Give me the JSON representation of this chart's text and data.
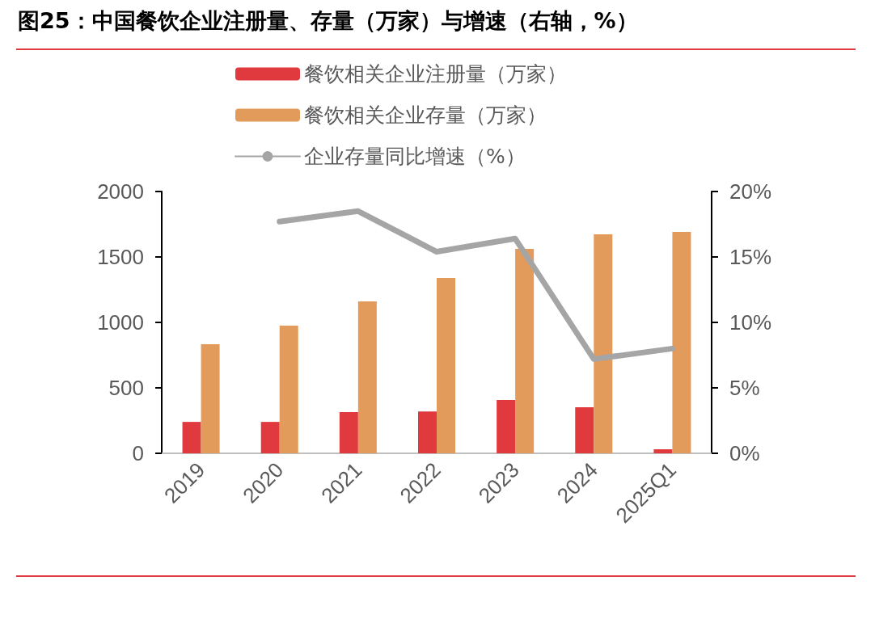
{
  "chart_data": {
    "type": "bar",
    "title": "图25：中国餐饮企业注册量、存量（万家）与增速（右轴，%）",
    "categories": [
      "2019",
      "2020",
      "2021",
      "2022",
      "2023",
      "2024",
      "2025Q1"
    ],
    "series": [
      {
        "name": "餐饮相关企业注册量（万家）",
        "color": "#e0393e",
        "values": [
          240,
          240,
          315,
          320,
          407,
          352,
          31
        ]
      },
      {
        "name": "餐饮相关企业存量（万家）",
        "color": "#e39b5b",
        "values": [
          833,
          975,
          1160,
          1340,
          1562,
          1673,
          1691
        ]
      },
      {
        "name": "企业存量同比增速（%）",
        "type": "line",
        "axis": "y2",
        "color": "#a5a5a5",
        "values": [
          null,
          17.7,
          18.5,
          15.4,
          16.4,
          7.2,
          8.0
        ]
      }
    ],
    "ylim": [
      0,
      2000
    ],
    "yticks": [
      0,
      500,
      1000,
      1500,
      2000
    ],
    "y2lim": [
      0,
      20
    ],
    "y2ticks": [
      {
        "value": 0,
        "label": "0%"
      },
      {
        "value": 5,
        "label": "5%"
      },
      {
        "value": 10,
        "label": "10%"
      },
      {
        "value": 15,
        "label": "15%"
      },
      {
        "value": 20,
        "label": "20%"
      }
    ],
    "legend": "top",
    "grid": false,
    "marker": "none",
    "line_style": "solid"
  }
}
